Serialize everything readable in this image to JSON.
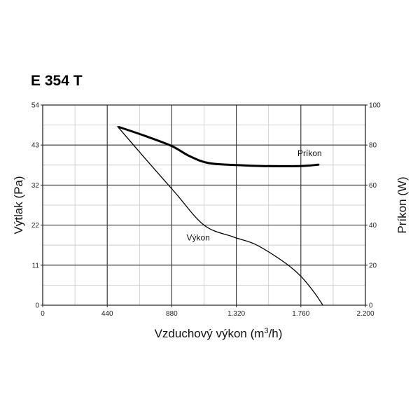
{
  "chart_data": {
    "type": "line",
    "title": "E 354 T",
    "xlabel": "Vzduchový výkon (m3/h)",
    "xlabel_parts": {
      "main": "Vzduchový výkon (m",
      "sup": "3",
      "end": "/h)"
    },
    "ylabel_left": "Výtlak (Pa)",
    "ylabel_right": "Príkon (W)",
    "xlim": [
      0,
      2200
    ],
    "ylim_left": [
      0,
      54
    ],
    "ylim_right": [
      0,
      100
    ],
    "x_ticks": [
      {
        "value": 0,
        "label": "0"
      },
      {
        "value": 440,
        "label": "440"
      },
      {
        "value": 880,
        "label": "880"
      },
      {
        "value": 1320,
        "label": "1.320"
      },
      {
        "value": 1760,
        "label": "1.760"
      },
      {
        "value": 2200,
        "label": "2.200"
      }
    ],
    "y_ticks_left": [
      {
        "value": 0,
        "label": "0"
      },
      {
        "value": 10.8,
        "label": "11"
      },
      {
        "value": 21.6,
        "label": "22"
      },
      {
        "value": 32.4,
        "label": "32"
      },
      {
        "value": 43.2,
        "label": "43"
      },
      {
        "value": 54,
        "label": "54"
      }
    ],
    "y_ticks_right": [
      {
        "value": 0,
        "label": "0"
      },
      {
        "value": 20,
        "label": "20"
      },
      {
        "value": 40,
        "label": "40"
      },
      {
        "value": 60,
        "label": "60"
      },
      {
        "value": 80,
        "label": "80"
      },
      {
        "value": 100,
        "label": "100"
      }
    ],
    "minor_x_step": 220,
    "minor_y_left_step": 5.4,
    "grid": true,
    "series": [
      {
        "name": "Výkon",
        "axis": "left",
        "stroke_width": 1.3,
        "x": [
          510,
          700,
          900,
          1100,
          1300,
          1450,
          1650,
          1760,
          1850,
          1910
        ],
        "y": [
          48.2,
          39.5,
          30.5,
          21.6,
          18.4,
          16.4,
          11.5,
          7.8,
          3.5,
          0
        ],
        "label_at": {
          "x": 1060,
          "y": 17.5
        }
      },
      {
        "name": "Príkon",
        "axis": "right",
        "stroke_width": 3,
        "x": [
          520,
          700,
          880,
          1000,
          1130,
          1320,
          1500,
          1760,
          1880
        ],
        "y": [
          89,
          84.5,
          79.5,
          74.5,
          71,
          70,
          69.5,
          69.5,
          70.2
        ],
        "label_at": {
          "x": 1820,
          "y": 74.5
        }
      }
    ]
  }
}
